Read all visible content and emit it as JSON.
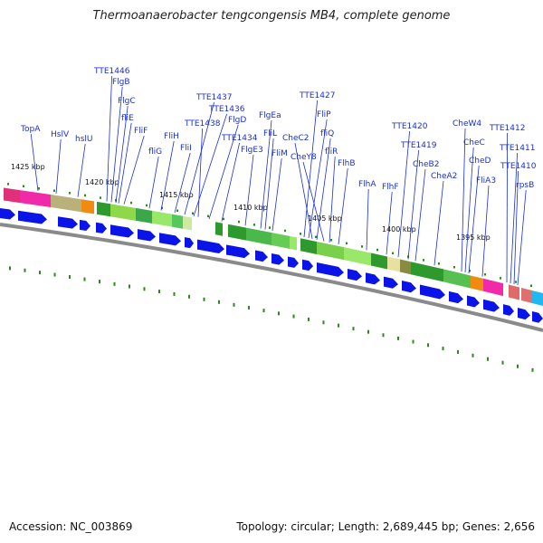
{
  "title": "Thermoanaerobacter tengcongensis MB4, complete genome",
  "accession": "Accession: NC_003869",
  "summary": "Topology: circular; Length: 2,689,445 bp; Genes: 2,656",
  "colors": {
    "gene_label": "#1a2fd6",
    "leader_line": "#1a2fd6",
    "cds_arrow": "#0a14e8",
    "backbone": "#8a8a8a",
    "gc_skew": "#2a8a1a"
  },
  "scale_labels": [
    "1425 kbp",
    "1420 kbp",
    "1415 kbp",
    "1410 kbp",
    "1405 kbp",
    "1400 kbp",
    "1395 kbp"
  ],
  "gene_labels": [
    "TTE1446",
    "FlgB",
    "FlgC",
    "fliE",
    "FliF",
    "TopA",
    "HslV",
    "hslU",
    "fliG",
    "FliH",
    "FliI",
    "TTE1437",
    "TTE1436",
    "TTE1438",
    "FlgD",
    "TTE1434",
    "FlgE3",
    "FlgEa",
    "FliL",
    "FliM",
    "TTE1427",
    "FliP",
    "CheC2",
    "fliQ",
    "CheY8",
    "fliR",
    "FlhB",
    "FlhA",
    "FlhF",
    "TTE1420",
    "TTE1419",
    "CheB2",
    "CheA2",
    "CheW4",
    "CheC",
    "CheD",
    "FliA3",
    "TTE1412",
    "TTE1411",
    "TTE1410",
    "rpsB"
  ]
}
